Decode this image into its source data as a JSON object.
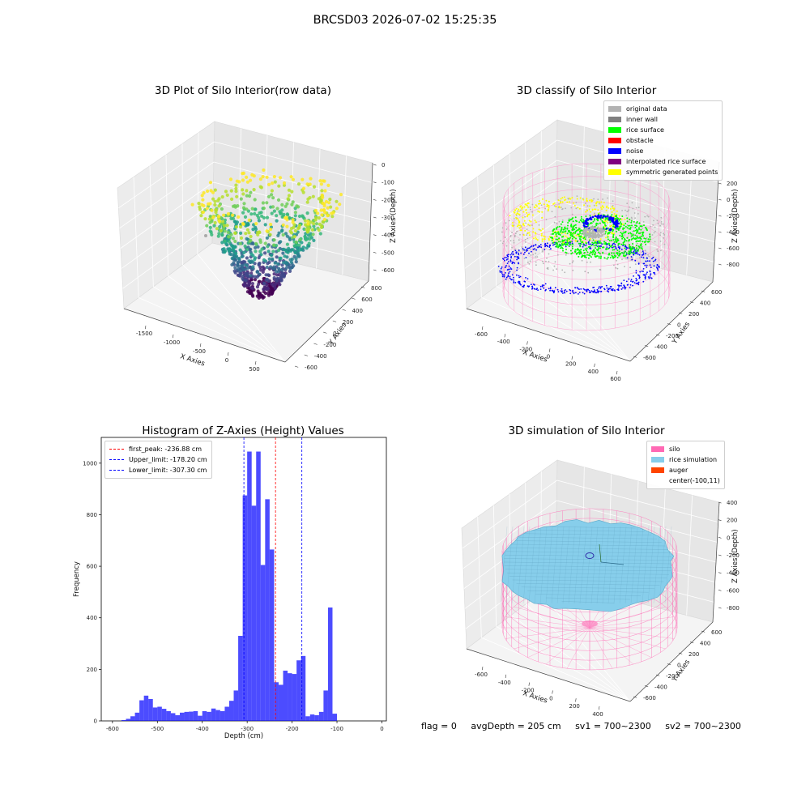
{
  "suptitle": "BRCSD03 2026-07-02 15:25:35",
  "chart_data": [
    {
      "type": "scatter3d",
      "title": "3D Plot of Silo Interior(row data)",
      "xlabel": "X Axies",
      "ylabel": "Y Axies",
      "zlabel": "Z Axies (Depth)",
      "x_ticks": [
        "-1500",
        "-1000",
        "-500",
        "0",
        "500"
      ],
      "y_ticks": [
        "-600",
        "-400",
        "-200",
        "0",
        "200",
        "400",
        "600",
        "800"
      ],
      "z_ticks": [
        "0",
        "-100",
        "-200",
        "-300",
        "-400",
        "-500",
        "-600"
      ],
      "colormap": "viridis"
    },
    {
      "type": "scatter3d",
      "title": "3D classify of Silo Interior",
      "xlabel": "X Axies",
      "ylabel": "Y Axies",
      "zlabel": "Z Axies (Depth)",
      "x_ticks": [
        "-600",
        "-400",
        "-200",
        "0",
        "200",
        "400",
        "600"
      ],
      "y_ticks": [
        "-600",
        "-400",
        "-200",
        "0",
        "200",
        "400",
        "600"
      ],
      "z_ticks": [
        "200",
        "0",
        "-200",
        "-400",
        "-600",
        "-800"
      ],
      "legend": [
        {
          "name": "original data",
          "color": "#b3b3b3"
        },
        {
          "name": "inner wall",
          "color": "#808080"
        },
        {
          "name": "rice surface",
          "color": "#00ff00"
        },
        {
          "name": "obstacle",
          "color": "#ff0000"
        },
        {
          "name": "noise",
          "color": "#0000ff"
        },
        {
          "name": "interpolated rice surface",
          "color": "#800080"
        },
        {
          "name": "symmetric generated points",
          "color": "#ffff00"
        }
      ]
    },
    {
      "type": "bar",
      "title": "Histogram of Z-Axies (Height) Values",
      "xlabel": "Depth (cm)",
      "ylabel": "Frequency",
      "xlim": [
        -625,
        10
      ],
      "ylim": [
        0,
        1100
      ],
      "x_ticks": [
        -600,
        -500,
        -400,
        -300,
        -200,
        -100,
        0
      ],
      "y_ticks": [
        0,
        200,
        400,
        600,
        800,
        1000
      ],
      "bin_width": 10,
      "bin_start": -580,
      "values": [
        3,
        8,
        18,
        32,
        80,
        98,
        85,
        52,
        55,
        47,
        38,
        30,
        22,
        32,
        35,
        36,
        38,
        20,
        38,
        35,
        48,
        42,
        38,
        55,
        78,
        118,
        330,
        875,
        1045,
        835,
        1045,
        605,
        860,
        665,
        150,
        140,
        195,
        185,
        182,
        235,
        252,
        18,
        25,
        22,
        35,
        118,
        440,
        28
      ],
      "bar_color": "#0000ff",
      "legend": [
        {
          "name": "first_peak: -236.88 cm",
          "color": "#ff0000",
          "value": -236.88
        },
        {
          "name": "Upper_limit: -178.20 cm",
          "color": "#0000ff",
          "value": -178.2
        },
        {
          "name": "Lower_limit: -307.30 cm",
          "color": "#0000ff",
          "value": -307.3
        }
      ]
    },
    {
      "type": "surface3d",
      "title": "3D simulation of Silo Interior",
      "xlabel": "X Axies",
      "ylabel": "Y Axies",
      "zlabel": "Z Axies (Depth)",
      "x_ticks": [
        "-600",
        "-400",
        "-200",
        "0",
        "200",
        "400"
      ],
      "y_ticks": [
        "-600",
        "-400",
        "-200",
        "0",
        "200",
        "400",
        "600"
      ],
      "z_ticks": [
        "400",
        "200",
        "0",
        "-200",
        "-400",
        "-600",
        "-800"
      ],
      "legend": [
        {
          "name": "silo",
          "color": "#ff69b4"
        },
        {
          "name": "rice simulation",
          "color": "#87ceeb"
        },
        {
          "name": "auger",
          "color": "#ff4500"
        },
        {
          "name": "center(-100,11)",
          "color": ""
        }
      ]
    }
  ],
  "footer": {
    "flag": "flag = 0",
    "avg_depth": "avgDepth = 205 cm",
    "sv1": "sv1 = 700~2300",
    "sv2": "sv2 = 700~2300"
  }
}
